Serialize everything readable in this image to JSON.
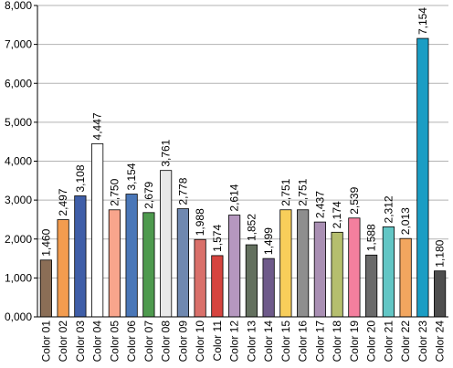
{
  "chart_data": {
    "type": "bar",
    "title": "",
    "xlabel": "",
    "ylabel": "",
    "ylim": [
      0,
      8000
    ],
    "yticks": [
      0,
      1000,
      2000,
      3000,
      4000,
      5000,
      6000,
      7000,
      8000
    ],
    "ytick_labels": [
      "0,000",
      "1,000",
      "2,000",
      "3,000",
      "4,000",
      "5,000",
      "6,000",
      "7,000",
      "8,000"
    ],
    "grid": "horizontal",
    "legend": "none",
    "categories": [
      "Color 01",
      "Color 02",
      "Color 03",
      "Color 04",
      "Color 05",
      "Color 06",
      "Color 07",
      "Color 08",
      "Color 09",
      "Color 10",
      "Color 11",
      "Color 12",
      "Color 13",
      "Color 14",
      "Color 15",
      "Color 16",
      "Color 17",
      "Color 18",
      "Color 19",
      "Color 20",
      "Color 21",
      "Color 22",
      "Color 23",
      "Color 24"
    ],
    "values": [
      1460,
      2497,
      3108,
      4447,
      2750,
      3154,
      2679,
      3761,
      2778,
      1988,
      1574,
      2614,
      1852,
      1499,
      2751,
      2751,
      2437,
      2174,
      2539,
      1588,
      2312,
      2013,
      7154,
      1180
    ],
    "value_labels": [
      "1,460",
      "2,497",
      "3,108",
      "4,447",
      "2,750",
      "3,154",
      "2,679",
      "3,761",
      "2,778",
      "1,988",
      "1,574",
      "2,614",
      "1,852",
      "1,499",
      "2,751",
      "2,751",
      "2,437",
      "2,174",
      "2,539",
      "1,588",
      "2,312",
      "2,013",
      "7,154",
      "1,180"
    ],
    "colors": [
      "#8b6e56",
      "#f39c4f",
      "#3f5ea8",
      "#ffffff",
      "#f8a58c",
      "#4a77b8",
      "#4e9a4e",
      "#e8e8e8",
      "#6f88b0",
      "#d9706a",
      "#d6443f",
      "#b597bf",
      "#63705e",
      "#6e5a8a",
      "#f8ce5a",
      "#8e8e8e",
      "#a98fb3",
      "#b5be6e",
      "#f47f9e",
      "#6a6a6a",
      "#62c6c5",
      "#f2a65f",
      "#1a9dc4",
      "#4e4e4e"
    ]
  }
}
